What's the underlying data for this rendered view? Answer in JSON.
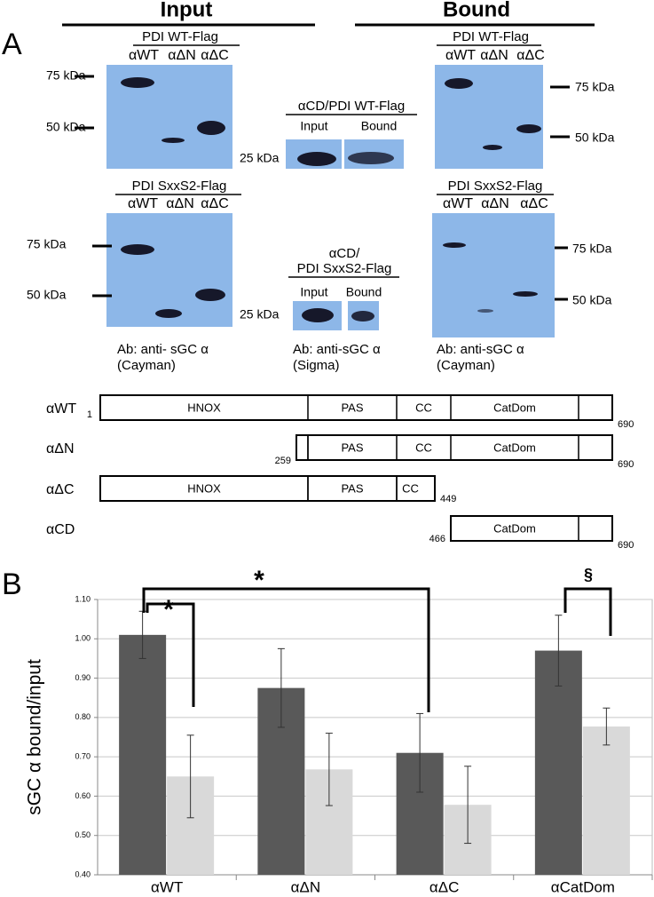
{
  "panel_a": {
    "label": "A",
    "headers": [
      "Input",
      "Bound"
    ],
    "blots": [
      {
        "title": [
          "PDI WT-Flag"
        ],
        "lanes": [
          "αWT",
          "αΔN",
          "αΔC"
        ],
        "markers": [
          "75 kDa",
          "50 kDa"
        ]
      },
      {
        "title": [
          "αCD/PDI WT-Flag"
        ],
        "lanes": [
          "Input",
          "Bound"
        ],
        "markers": [
          "25 kDa"
        ]
      },
      {
        "title": [
          "PDI WT-Flag"
        ],
        "lanes": [
          "αWT",
          "αΔN",
          "αΔC"
        ],
        "markers": [
          "75 kDa",
          "50 kDa"
        ]
      },
      {
        "title": [
          "PDI SxxS2-Flag"
        ],
        "lanes": [
          "αWT",
          "αΔN",
          "αΔC"
        ],
        "markers": [
          "75 kDa",
          "50 kDa"
        ]
      },
      {
        "title": [
          "αCD/",
          "PDI SxxS2-Flag"
        ],
        "lanes": [
          "Input",
          "Bound"
        ],
        "markers": [
          "25 kDa"
        ]
      },
      {
        "title": [
          "PDI SxxS2-Flag"
        ],
        "lanes": [
          "αWT",
          "αΔN",
          "αΔC"
        ],
        "markers": [
          "75 kDa",
          "50 kDa"
        ]
      }
    ],
    "antibodies": [
      [
        "Ab: anti- sGC α",
        "(Cayman)"
      ],
      [
        "Ab: anti-sGC α",
        "(Sigma)"
      ],
      [
        "Ab: anti-sGC α",
        "(Cayman)"
      ]
    ],
    "constructs": [
      {
        "name": "αWT",
        "start": 1,
        "end": 690,
        "domains": [
          "HNOX",
          "PAS",
          "CC",
          "CatDom"
        ]
      },
      {
        "name": "αΔN",
        "start": 259,
        "end": 690,
        "domains": [
          "PAS",
          "CC",
          "CatDom"
        ]
      },
      {
        "name": "αΔC",
        "end": 449,
        "domains": [
          "HNOX",
          "PAS",
          "CC"
        ]
      },
      {
        "name": "αCD",
        "start": 466,
        "end": 690,
        "domains": [
          "CatDom"
        ]
      }
    ]
  },
  "panel_b_label": "B",
  "chart_data": {
    "type": "bar",
    "y_label": "sGC α bound/input",
    "categories": [
      "αWT",
      "αΔN",
      "αΔC",
      "αCatDom"
    ],
    "series": [
      {
        "color": "#595959",
        "values": [
          1.01,
          0.875,
          0.71,
          0.97
        ],
        "errors": [
          0.06,
          0.1,
          0.1,
          0.09
        ]
      },
      {
        "color": "#d9d9d9",
        "values": [
          0.65,
          0.668,
          0.578,
          0.777
        ],
        "errors": [
          0.105,
          0.092,
          0.098,
          0.047
        ]
      }
    ],
    "ylim": [
      0.4,
      1.1
    ],
    "yticks": [
      {
        "value": 0.4,
        "label": "0.40"
      },
      {
        "value": 0.5,
        "label": "0.50"
      },
      {
        "value": 0.6,
        "label": "0.60"
      },
      {
        "value": 0.7,
        "label": "0.70"
      },
      {
        "value": 0.8,
        "label": "0.80"
      },
      {
        "value": 0.9,
        "label": "0.90"
      },
      {
        "value": 1.0,
        "label": "1.00"
      },
      {
        "value": 1.1,
        "label": "1.10"
      }
    ],
    "grid": true,
    "annotations": [
      "*",
      "*",
      "§"
    ]
  }
}
